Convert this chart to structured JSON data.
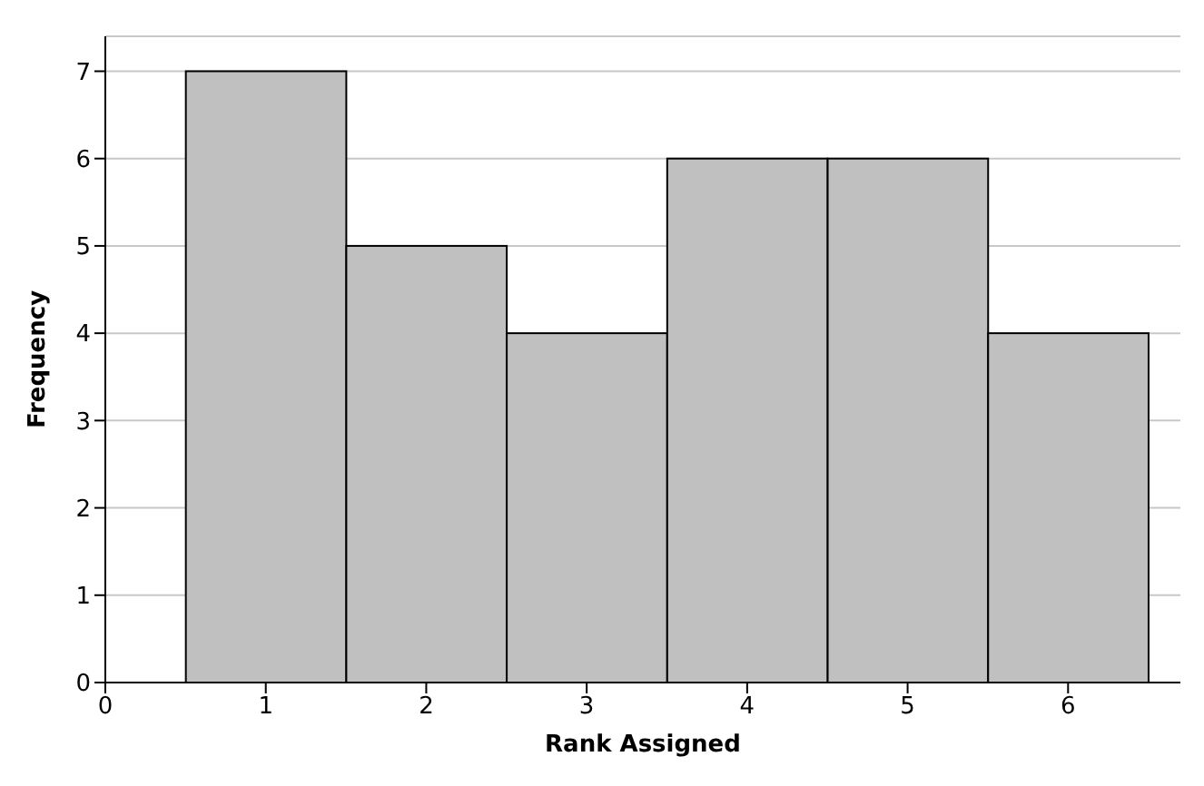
{
  "chart_data": {
    "type": "histogram",
    "xlabel": "Rank Assigned",
    "ylabel": "Frequency",
    "bins": [
      0.5,
      1.5,
      2.5,
      3.5,
      4.5,
      5.5,
      6.5
    ],
    "values": [
      7,
      5,
      4,
      6,
      6,
      4
    ],
    "color": "#c0c0c0",
    "xlim": [
      0,
      6.7
    ],
    "xticks": [
      0,
      1,
      2,
      3,
      4,
      5,
      6
    ],
    "ylim": [
      0,
      7.4
    ],
    "yticks": [
      0,
      1,
      2,
      3,
      4,
      5,
      6,
      7
    ],
    "grid": "y",
    "legend": false
  }
}
